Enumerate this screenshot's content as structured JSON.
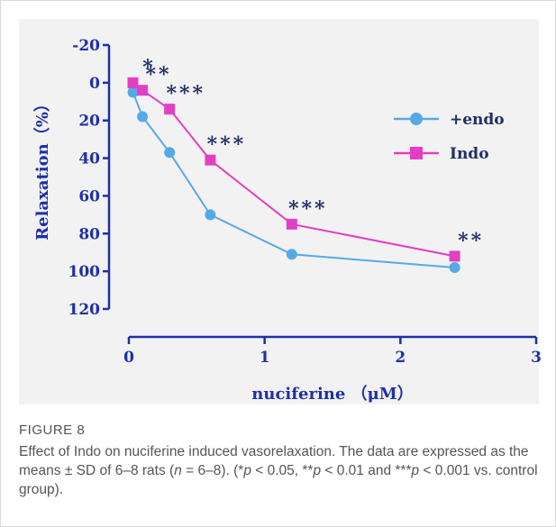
{
  "figure": {
    "label": "FIGURE 8",
    "caption": [
      {
        "t": "Effect of Indo on nuciferine induced vasorelaxation. The data are expressed as the means ± SD of 6–8 rats ("
      },
      {
        "t": "n",
        "i": true
      },
      {
        "t": " = 6–8). (*"
      },
      {
        "t": "p",
        "i": true
      },
      {
        "t": " < 0.05, **"
      },
      {
        "t": "p",
        "i": true
      },
      {
        "t": " < 0.01 and ***"
      },
      {
        "t": "p",
        "i": true
      },
      {
        "t": " < 0.001 vs. control group)."
      }
    ]
  },
  "chart_data": {
    "type": "line",
    "xlabel": "nuciferine （μM）",
    "ylabel": "Relaxation（%）",
    "xlim": [
      0,
      3
    ],
    "ylim": [
      -20,
      120
    ],
    "y_inverted": true,
    "xticks": [
      0,
      1,
      2,
      3
    ],
    "yticks": [
      -20,
      0,
      20,
      40,
      60,
      80,
      100,
      120
    ],
    "grid": false,
    "legend_position": "right",
    "series": [
      {
        "name": "+endo",
        "color": "#56a9e6",
        "marker": "circle",
        "x": [
          0.03,
          0.1,
          0.3,
          0.6,
          1.2,
          2.4
        ],
        "y": [
          5,
          18,
          37,
          70,
          91,
          98
        ]
      },
      {
        "name": "Indo",
        "color": "#e23fc4",
        "marker": "square",
        "x": [
          0.03,
          0.1,
          0.3,
          0.6,
          1.2,
          2.4
        ],
        "y": [
          0,
          4,
          14,
          41,
          75,
          92
        ]
      }
    ],
    "annotations": [
      {
        "x": 0.03,
        "y": 0,
        "text": "*"
      },
      {
        "x": 0.1,
        "y": 4,
        "text": "**"
      },
      {
        "x": 0.3,
        "y": 14,
        "text": "***"
      },
      {
        "x": 0.6,
        "y": 41,
        "text": "***"
      },
      {
        "x": 1.2,
        "y": 75,
        "text": "***"
      },
      {
        "x": 2.4,
        "y": 92,
        "text": "**"
      }
    ]
  }
}
